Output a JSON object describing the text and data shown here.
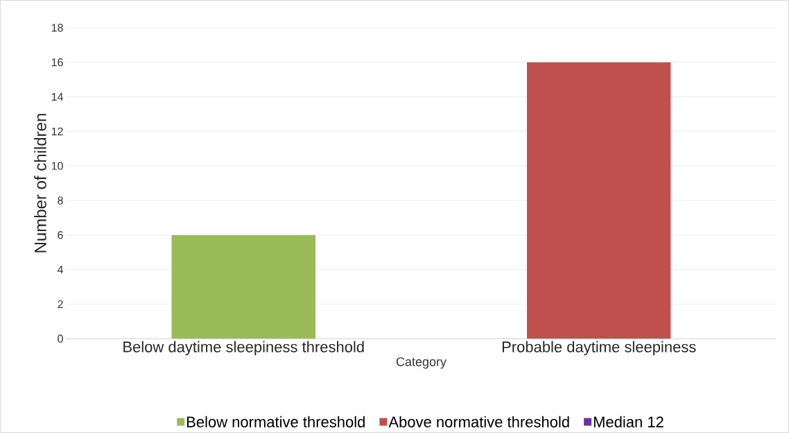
{
  "chart_data": {
    "type": "bar",
    "xlabel": "Category",
    "ylabel": "Number of children",
    "categories": [
      "Below daytime sleepiness threshold",
      "Probable daytime sleepiness"
    ],
    "series": [
      {
        "name": "Below normative threshold",
        "color": "#9bbb59",
        "values": [
          6,
          null
        ]
      },
      {
        "name": "Above normative threshold",
        "color": "#c0504d",
        "values": [
          null,
          16
        ]
      },
      {
        "name": "Median 12",
        "color": "#7030a0",
        "values": [
          null,
          null
        ]
      }
    ],
    "ylim": [
      0,
      18
    ],
    "yticks": [
      0,
      2,
      4,
      6,
      8,
      10,
      12,
      14,
      16,
      18
    ],
    "grid": "y",
    "legend": "bottom"
  }
}
